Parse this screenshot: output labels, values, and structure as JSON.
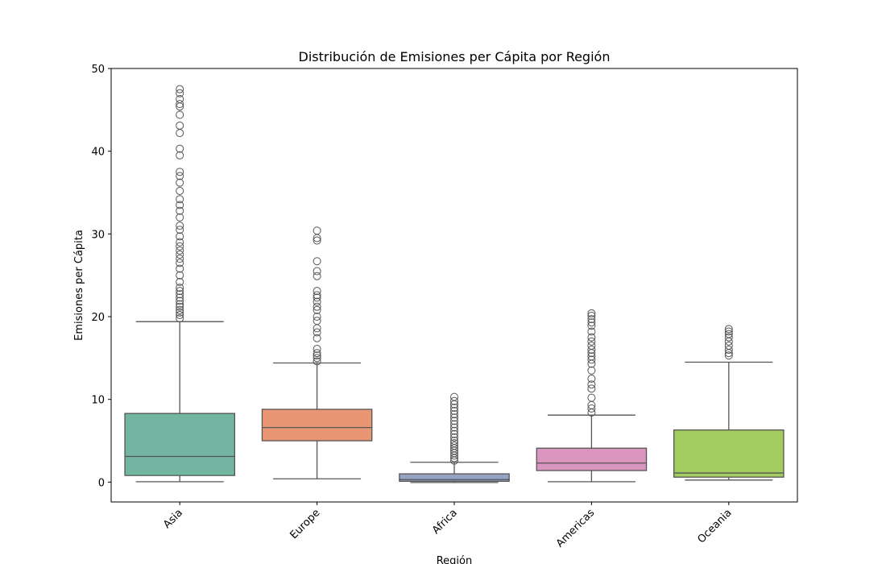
{
  "chart_data": {
    "type": "box",
    "title": "Distribución de Emisiones per Cápita por Región",
    "x_label": "Región",
    "y_label": "Emisiones per Cápita",
    "categories": [
      "Asia",
      "Europe",
      "Africa",
      "Americas",
      "Oceania"
    ],
    "colors": [
      "#72b6a1",
      "#e99675",
      "#95a3c3",
      "#db96c0",
      "#a3cd61"
    ],
    "boxes": [
      {
        "whisker_low": 0.05,
        "q1": 0.8,
        "median": 3.1,
        "q3": 8.3,
        "whisker_high": 19.4,
        "outliers": [
          19.8,
          20.2,
          20.5,
          20.8,
          21.2,
          21.5,
          21.9,
          22.3,
          22.7,
          23.1,
          23.5,
          24.2,
          25.0,
          25.8,
          26.5,
          27.0,
          27.5,
          28.0,
          28.5,
          29.0,
          29.7,
          30.5,
          31.0,
          32.0,
          32.8,
          33.5,
          34.2,
          35.2,
          36.2,
          37.0,
          37.5,
          39.5,
          40.3,
          42.2,
          43.1,
          44.4,
          45.4,
          45.7,
          46.3,
          47.0,
          47.5
        ]
      },
      {
        "whisker_low": 0.4,
        "q1": 5.0,
        "median": 6.6,
        "q3": 8.8,
        "whisker_high": 14.4,
        "outliers": [
          14.6,
          15.0,
          15.3,
          15.6,
          16.1,
          17.4,
          18.1,
          18.6,
          19.5,
          20.0,
          20.8,
          21.2,
          21.8,
          22.3,
          22.6,
          23.1,
          24.9,
          25.5,
          26.7,
          29.2,
          29.5,
          30.4
        ]
      },
      {
        "whisker_low": -0.05,
        "q1": 0.1,
        "median": 0.3,
        "q3": 1.0,
        "whisker_high": 2.4,
        "outliers": [
          2.6,
          2.9,
          3.2,
          3.5,
          3.8,
          4.1,
          4.4,
          4.7,
          5.0,
          5.4,
          5.8,
          6.2,
          6.6,
          7.0,
          7.4,
          7.8,
          8.2,
          8.6,
          9.0,
          9.4,
          9.8,
          10.3
        ]
      },
      {
        "whisker_low": 0.05,
        "q1": 1.4,
        "median": 2.3,
        "q3": 4.1,
        "whisker_high": 8.1,
        "outliers": [
          8.4,
          8.9,
          9.3,
          10.2,
          11.3,
          11.8,
          12.5,
          13.5,
          14.3,
          14.8,
          15.2,
          15.6,
          16.0,
          16.5,
          17.0,
          17.5,
          18.2,
          18.9,
          19.3,
          19.7,
          20.1,
          20.4
        ]
      },
      {
        "whisker_low": 0.25,
        "q1": 0.6,
        "median": 1.1,
        "q3": 6.3,
        "whisker_high": 14.5,
        "outliers": [
          15.3,
          15.6,
          16.0,
          16.5,
          17.0,
          17.5,
          17.9,
          18.2,
          18.5
        ]
      }
    ],
    "ylim": [
      -2.4,
      50
    ],
    "yticks": [
      0,
      10,
      20,
      30,
      40,
      50
    ]
  }
}
